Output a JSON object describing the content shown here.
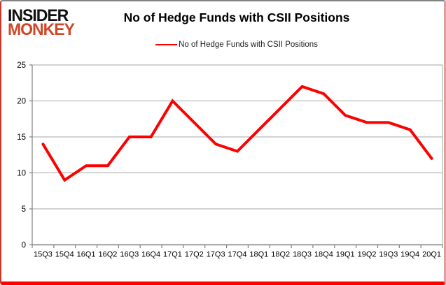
{
  "logo": {
    "line1": "INSIDER",
    "line2": "MONKEY"
  },
  "header": {
    "title": "No of Hedge Funds with CSII Positions"
  },
  "legend": {
    "label": "No of Hedge Funds with CSII Positions"
  },
  "colors": {
    "series_red": "#fe0000",
    "logo_red": "#d04727",
    "gridline": "#a6a6a6",
    "axis": "#808080",
    "text": "#000000"
  },
  "chart_data": {
    "type": "line",
    "title": "No of Hedge Funds with CSII Positions",
    "categories": [
      "15Q3",
      "15Q4",
      "16Q1",
      "16Q2",
      "16Q3",
      "16Q4",
      "17Q1",
      "17Q2",
      "17Q3",
      "17Q4",
      "18Q1",
      "18Q2",
      "18Q3",
      "18Q4",
      "19Q1",
      "19Q2",
      "19Q3",
      "19Q4",
      "20Q1"
    ],
    "series": [
      {
        "name": "No of Hedge Funds with CSII Positions",
        "color": "#fe0000",
        "values": [
          14,
          9,
          11,
          11,
          15,
          15,
          20,
          17,
          14,
          13,
          16,
          19,
          22,
          21,
          18,
          17,
          17,
          16,
          12
        ]
      }
    ],
    "xlabel": "",
    "ylabel": "",
    "ylim": [
      0,
      25
    ],
    "yticks": [
      0,
      5,
      10,
      15,
      20,
      25
    ],
    "grid": true,
    "legend_position": "top"
  }
}
